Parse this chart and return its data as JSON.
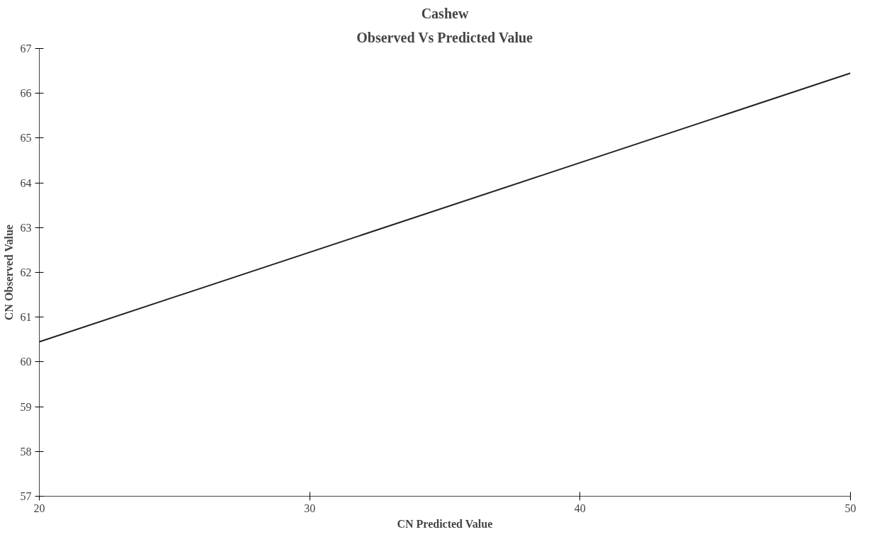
{
  "chart_data": {
    "type": "line",
    "title": "Cashew",
    "subtitle": "Observed Vs Predicted Value",
    "xlabel": "CN Predicted Value",
    "ylabel": "CN Observed Value",
    "x": [
      20,
      50
    ],
    "series": [
      {
        "color": "#222222",
        "values": [
          60.45,
          66.45
        ]
      }
    ],
    "xlim": [
      20,
      50
    ],
    "xticks": [
      20,
      30,
      40,
      50
    ],
    "ylim": [
      57,
      67
    ],
    "yticks": [
      57,
      58,
      59,
      60,
      61,
      62,
      63,
      64,
      65,
      66,
      67
    ],
    "grid": false,
    "marker": "none",
    "line_style": "solid"
  }
}
